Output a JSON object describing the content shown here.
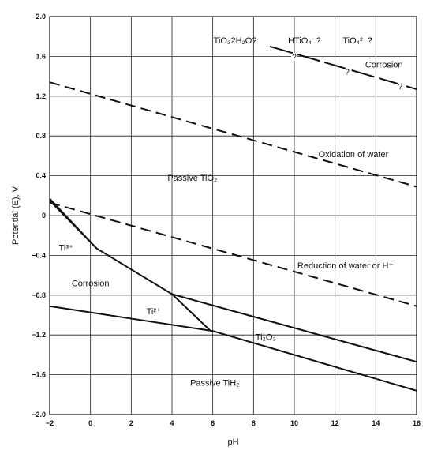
{
  "chart_data": {
    "type": "line",
    "title": "",
    "xlabel": "pH",
    "ylabel": "Potential (E), V",
    "xlim": [
      -2,
      16
    ],
    "ylim": [
      -2.0,
      2.0
    ],
    "grid": true,
    "x_ticks": [
      -2,
      0,
      2,
      4,
      6,
      8,
      10,
      12,
      14,
      16
    ],
    "x_tick_labels": [
      "−2",
      "0",
      "2",
      "4",
      "6",
      "8",
      "10",
      "12",
      "14",
      "16"
    ],
    "y_ticks": [
      -2.0,
      -1.6,
      -1.2,
      -0.8,
      -0.4,
      0,
      0.4,
      0.8,
      1.2,
      1.6,
      2.0
    ],
    "y_tick_labels": [
      "−2.0",
      "−1.6",
      "−1.2",
      "−0.8",
      "−0.4",
      "0",
      "0.4",
      "0.8",
      "1.2",
      "1.6",
      "2.0"
    ],
    "series": [
      {
        "style": "dashed",
        "points": [
          [
            -2,
            1.34
          ],
          [
            16,
            0.29
          ]
        ]
      },
      {
        "style": "dashed",
        "points": [
          [
            -2,
            0.13
          ],
          [
            16,
            -0.91
          ]
        ]
      },
      {
        "style": "solid",
        "points": [
          [
            -2,
            0.17
          ],
          [
            0.3,
            -0.33
          ],
          [
            4,
            -0.79
          ],
          [
            16,
            -1.47
          ]
        ]
      },
      {
        "style": "solid",
        "points": [
          [
            -2,
            0.15
          ],
          [
            0.3,
            -0.33
          ]
        ]
      },
      {
        "style": "solid",
        "points": [
          [
            -2,
            -0.91
          ],
          [
            6,
            -1.16
          ],
          [
            16,
            -1.76
          ]
        ]
      },
      {
        "style": "solid",
        "points": [
          [
            4,
            -0.79
          ],
          [
            5.9,
            -1.16
          ]
        ]
      },
      {
        "style": "dash-dot",
        "points": [
          [
            8.8,
            1.7
          ],
          [
            16,
            1.27
          ]
        ]
      }
    ],
    "annotations": [
      {
        "text": "TiO₃2H₂O?",
        "x": 7.1,
        "y": 1.76
      },
      {
        "text": "HTiO₄⁻?",
        "x": 10.5,
        "y": 1.76
      },
      {
        "text": "TiO₄²⁻?",
        "x": 13.1,
        "y": 1.76
      },
      {
        "text": "?",
        "x": 10.0,
        "y": 1.6
      },
      {
        "text": "?",
        "x": 12.6,
        "y": 1.45
      },
      {
        "text": "?",
        "x": 15.2,
        "y": 1.3
      },
      {
        "text": "Corrosion",
        "x": 14.4,
        "y": 1.52
      },
      {
        "text": "Oxidation of water",
        "x": 12.9,
        "y": 0.62
      },
      {
        "text": "Passive TiO₂",
        "x": 5.0,
        "y": 0.38
      },
      {
        "text": "Ti³⁺",
        "x": -1.2,
        "y": -0.32
      },
      {
        "text": "Corrosion",
        "x": 0.0,
        "y": -0.68
      },
      {
        "text": "Reduction of water or H⁺",
        "x": 12.5,
        "y": -0.5
      },
      {
        "text": "Ti²⁺",
        "x": 3.1,
        "y": -0.96
      },
      {
        "text": "Ti₂O₃",
        "x": 8.6,
        "y": -1.22
      },
      {
        "text": "Passive TiH₂",
        "x": 6.1,
        "y": -1.68
      }
    ]
  }
}
